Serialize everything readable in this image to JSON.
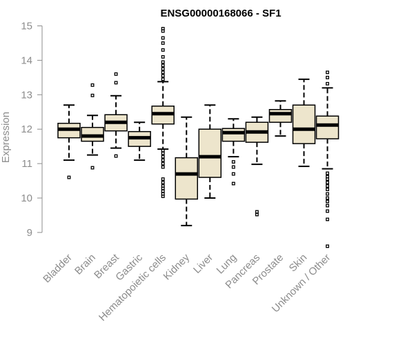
{
  "chart_data": {
    "type": "box",
    "title": "ENSG00000168066 - SF1",
    "xlabel": "",
    "ylabel": "Expression",
    "ylim": [
      8.5,
      15.05
    ],
    "yticks": [
      9,
      10,
      11,
      12,
      13,
      14,
      15
    ],
    "grid": false,
    "box_fill": "#ede5cc",
    "line_color": "#000000",
    "categories": [
      "Bladder",
      "Brain",
      "Breast",
      "Gastric",
      "Hematopoietic cells",
      "Kidney",
      "Liver",
      "Lung",
      "Pancreas",
      "Prostate",
      "Skin",
      "Unknown / Other"
    ],
    "boxes": [
      {
        "category": "Bladder",
        "whisker_low": 11.1,
        "q1": 11.75,
        "median": 12.0,
        "q3": 12.17,
        "whisker_high": 12.7,
        "outliers": [
          10.6
        ]
      },
      {
        "category": "Brain",
        "whisker_low": 11.25,
        "q1": 11.65,
        "median": 11.8,
        "q3": 12.05,
        "whisker_high": 12.4,
        "outliers": [
          10.88,
          12.98,
          13.28
        ]
      },
      {
        "category": "Breast",
        "whisker_low": 11.45,
        "q1": 11.95,
        "median": 12.2,
        "q3": 12.42,
        "whisker_high": 12.97,
        "outliers": [
          11.22,
          13.35,
          13.6
        ]
      },
      {
        "category": "Gastric",
        "whisker_low": 11.1,
        "q1": 11.5,
        "median": 11.75,
        "q3": 11.93,
        "whisker_high": 12.2,
        "outliers": []
      },
      {
        "category": "Hematopoietic cells",
        "whisker_low": 11.42,
        "q1": 12.15,
        "median": 12.45,
        "q3": 12.67,
        "whisker_high": 13.38,
        "outliers": [
          10.05,
          10.12,
          10.2,
          10.28,
          10.35,
          10.45,
          10.55,
          10.9,
          11.0,
          11.1,
          11.2,
          11.3,
          11.38,
          13.45,
          13.55,
          13.65,
          13.75,
          13.85,
          13.95,
          14.1,
          14.3,
          14.5,
          14.65,
          14.85,
          14.92
        ]
      },
      {
        "category": "Kidney",
        "whisker_low": 9.2,
        "q1": 9.97,
        "median": 10.7,
        "q3": 11.17,
        "whisker_high": 12.35,
        "outliers": []
      },
      {
        "category": "Liver",
        "whisker_low": 10.0,
        "q1": 10.6,
        "median": 11.2,
        "q3": 12.0,
        "whisker_high": 12.7,
        "outliers": []
      },
      {
        "category": "Lung",
        "whisker_low": 11.2,
        "q1": 11.65,
        "median": 11.9,
        "q3": 12.02,
        "whisker_high": 12.3,
        "outliers": [
          10.42,
          10.7,
          10.9,
          11.05
        ]
      },
      {
        "category": "Pancreas",
        "whisker_low": 10.98,
        "q1": 11.62,
        "median": 11.92,
        "q3": 12.2,
        "whisker_high": 12.35,
        "outliers": [
          9.52,
          9.6
        ]
      },
      {
        "category": "Prostate",
        "whisker_low": 11.8,
        "q1": 12.2,
        "median": 12.45,
        "q3": 12.57,
        "whisker_high": 12.82,
        "outliers": []
      },
      {
        "category": "Skin",
        "whisker_low": 10.92,
        "q1": 11.58,
        "median": 12.0,
        "q3": 12.7,
        "whisker_high": 13.45,
        "outliers": []
      },
      {
        "category": "Unknown / Other",
        "whisker_low": 10.85,
        "q1": 11.72,
        "median": 12.12,
        "q3": 12.38,
        "whisker_high": 13.2,
        "outliers": [
          8.6,
          9.38,
          9.62,
          9.78,
          9.9,
          10.0,
          10.12,
          10.25,
          10.35,
          10.45,
          10.55,
          10.62,
          10.72,
          13.32,
          13.5,
          13.65
        ]
      }
    ]
  }
}
